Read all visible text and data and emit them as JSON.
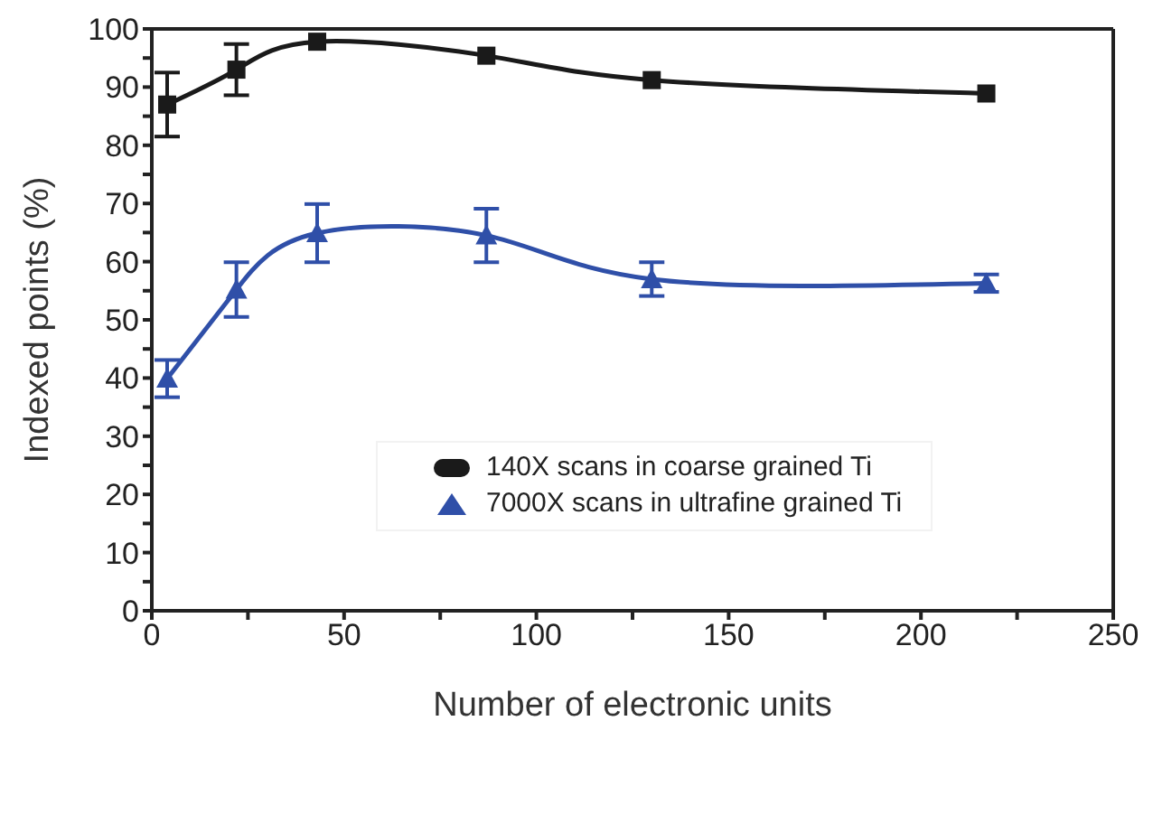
{
  "chart_data": {
    "type": "line",
    "xlabel": "Number of electronic units",
    "ylabel": "Indexed points (%)",
    "xlim": [
      0,
      250
    ],
    "xticks": [
      0,
      {
        "value": 25,
        "label": null
      },
      50,
      {
        "value": 75,
        "label": null
      },
      100,
      {
        "value": 125,
        "label": null
      },
      150,
      {
        "value": 175,
        "label": null
      },
      200,
      {
        "value": 225,
        "label": null
      },
      250
    ],
    "ylim": [
      0,
      100
    ],
    "yticks": [
      0,
      {
        "value": 5,
        "label": null
      },
      10,
      {
        "value": 15,
        "label": null
      },
      20,
      {
        "value": 25,
        "label": null
      },
      30,
      {
        "value": 35,
        "label": null
      },
      40,
      {
        "value": 45,
        "label": null
      },
      50,
      {
        "value": 55,
        "label": null
      },
      60,
      {
        "value": 65,
        "label": null
      },
      70,
      {
        "value": 75,
        "label": null
      },
      80,
      {
        "value": 85,
        "label": null
      },
      90,
      {
        "value": 95,
        "label": null
      },
      100
    ],
    "legend": "center",
    "line_style": "solid",
    "series": [
      {
        "name": "140X scans in coarse grained Ti",
        "color": "#1a1a1a",
        "marker": "square",
        "x": [
          4,
          22,
          43,
          87,
          130,
          217
        ],
        "values": [
          87,
          93,
          97.8,
          95.4,
          91.2,
          88.9
        ],
        "errors": [
          5.5,
          4.4,
          null,
          null,
          null,
          null
        ]
      },
      {
        "name": "7000X scans in ultrafine grained Ti",
        "color": "#2f4fa8",
        "marker": "triangle",
        "x": [
          4,
          22,
          43,
          87,
          130,
          217
        ],
        "values": [
          39.9,
          55.2,
          64.9,
          64.5,
          57,
          56.3
        ],
        "errors": [
          3.2,
          4.7,
          5,
          4.6,
          2.9,
          1.5
        ]
      }
    ]
  }
}
